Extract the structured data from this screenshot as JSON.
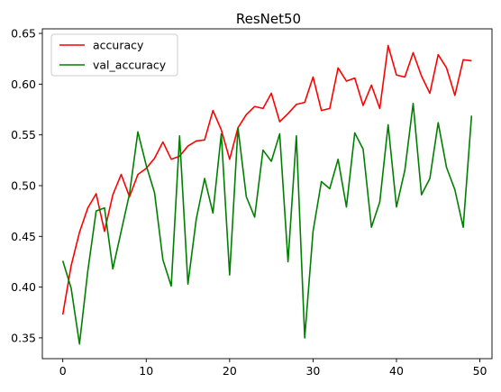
{
  "chart_data": {
    "type": "line",
    "title": "ResNet50",
    "xlabel": "",
    "ylabel": "",
    "xlim": [
      -2.45,
      51.45
    ],
    "ylim": [
      0.3295,
      0.6545
    ],
    "xticks": [
      0,
      10,
      20,
      30,
      40,
      50
    ],
    "yticks": [
      0.35,
      0.4,
      0.45,
      0.5,
      0.55,
      0.6,
      0.65
    ],
    "ytick_labels": [
      "0.35",
      "0.40",
      "0.45",
      "0.50",
      "0.55",
      "0.60",
      "0.65"
    ],
    "grid": false,
    "legend": "top-left",
    "series": [
      {
        "name": "accuracy",
        "color": "#ff0000",
        "x": [
          0,
          1,
          2,
          3,
          4,
          5,
          6,
          7,
          8,
          9,
          10,
          11,
          12,
          13,
          14,
          15,
          16,
          17,
          18,
          19,
          20,
          21,
          22,
          23,
          24,
          25,
          26,
          27,
          28,
          29,
          30,
          31,
          32,
          33,
          34,
          35,
          36,
          37,
          38,
          39,
          40,
          41,
          42,
          43,
          44,
          45,
          46,
          47,
          48,
          49
        ],
        "values": [
          0.373,
          0.421,
          0.454,
          0.478,
          0.492,
          0.455,
          0.491,
          0.511,
          0.489,
          0.511,
          0.517,
          0.527,
          0.543,
          0.526,
          0.529,
          0.539,
          0.544,
          0.545,
          0.574,
          0.555,
          0.526,
          0.557,
          0.57,
          0.578,
          0.576,
          0.591,
          0.563,
          0.571,
          0.58,
          0.582,
          0.607,
          0.574,
          0.576,
          0.616,
          0.603,
          0.606,
          0.579,
          0.599,
          0.576,
          0.638,
          0.609,
          0.607,
          0.631,
          0.608,
          0.591,
          0.629,
          0.616,
          0.589,
          0.624,
          0.623
        ]
      },
      {
        "name": "val_accuracy",
        "color": "#008000",
        "x": [
          0,
          1,
          2,
          3,
          4,
          5,
          6,
          7,
          8,
          9,
          10,
          11,
          12,
          13,
          14,
          15,
          16,
          17,
          18,
          19,
          20,
          21,
          22,
          23,
          24,
          25,
          26,
          27,
          28,
          29,
          30,
          31,
          32,
          33,
          34,
          35,
          36,
          37,
          38,
          39,
          40,
          41,
          42,
          43,
          44,
          45,
          46,
          47,
          48,
          49
        ],
        "values": [
          0.426,
          0.399,
          0.344,
          0.416,
          0.475,
          0.478,
          0.418,
          0.455,
          0.492,
          0.553,
          0.52,
          0.493,
          0.427,
          0.401,
          0.549,
          0.403,
          0.467,
          0.507,
          0.473,
          0.551,
          0.412,
          0.557,
          0.489,
          0.469,
          0.535,
          0.524,
          0.551,
          0.425,
          0.549,
          0.35,
          0.455,
          0.504,
          0.497,
          0.526,
          0.479,
          0.552,
          0.536,
          0.459,
          0.484,
          0.56,
          0.479,
          0.515,
          0.581,
          0.491,
          0.507,
          0.562,
          0.518,
          0.496,
          0.459,
          0.569
        ]
      }
    ]
  }
}
